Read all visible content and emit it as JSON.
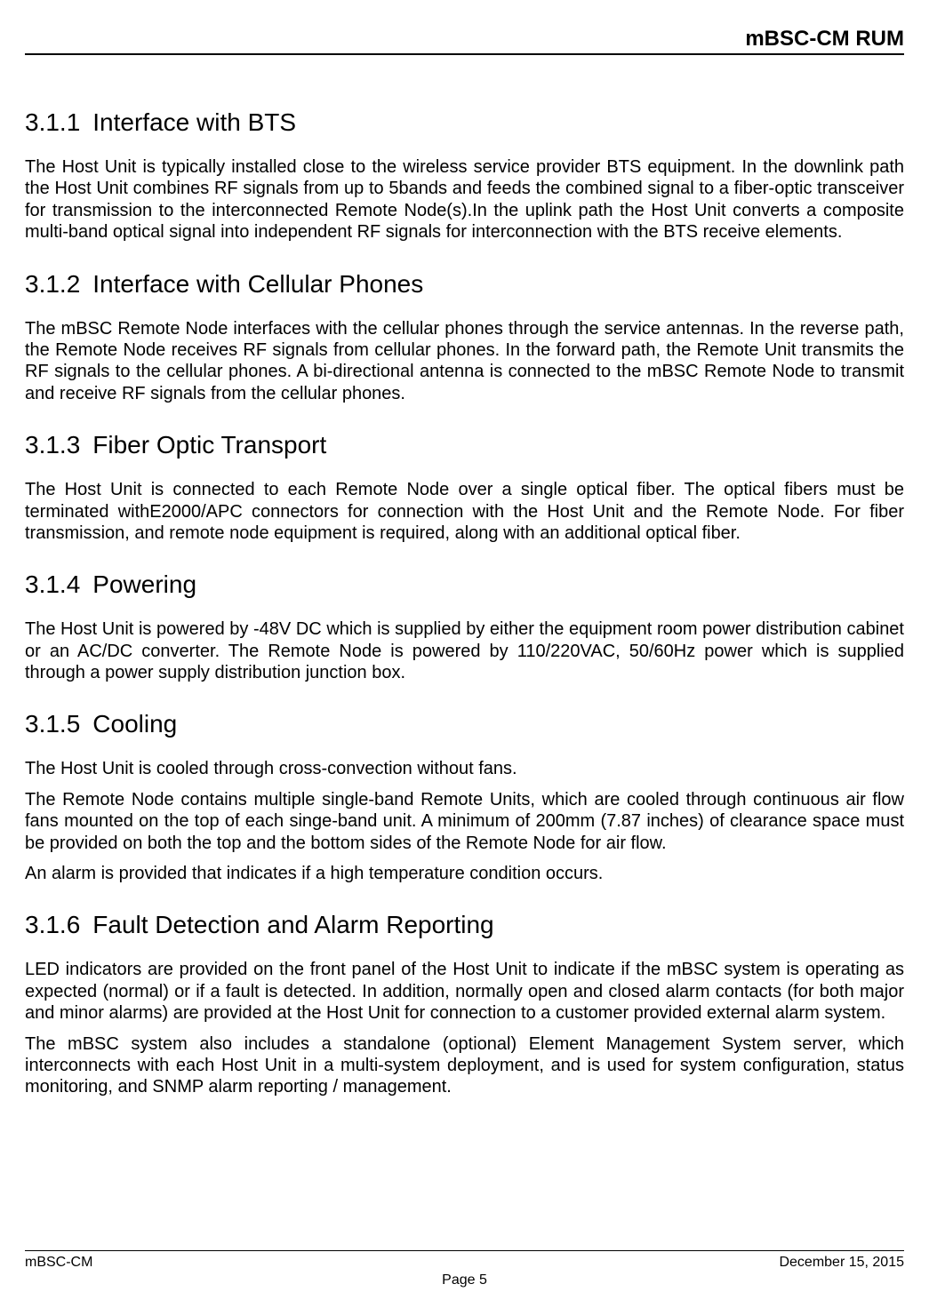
{
  "header": {
    "title": "mBSC-CM  RUM"
  },
  "sections": [
    {
      "num": "3.1.1",
      "title": "Interface with BTS",
      "paras": [
        "The Host Unit is typically installed close to the wireless service provider BTS equipment. In the downlink path the Host Unit combines RF signals from up to 5bands and feeds the combined signal to a fiber-optic transceiver for transmission to the interconnected Remote Node(s).In the uplink path the Host Unit converts a composite multi-band optical signal into independent RF signals for interconnection with the BTS receive elements."
      ]
    },
    {
      "num": "3.1.2",
      "title": "Interface with Cellular Phones",
      "paras": [
        "The mBSC Remote Node interfaces with the cellular phones through the service antennas. In the reverse path, the Remote Node receives RF signals from cellular phones. In the forward path, the Remote Unit transmits the RF signals to the cellular phones. A bi-directional antenna is connected to the mBSC Remote Node to transmit and receive RF signals from the cellular phones."
      ]
    },
    {
      "num": "3.1.3",
      "title": "Fiber Optic Transport",
      "paras": [
        "The Host Unit is connected to each Remote Node over a single optical fiber. The optical fibers must be terminated withE2000/APC connectors for connection with the Host Unit and the Remote Node. For fiber transmission, and remote node equipment is required, along with an additional optical fiber."
      ]
    },
    {
      "num": "3.1.4",
      "title": "Powering",
      "paras": [
        "The Host Unit is powered by -48V DC which is supplied by either the equipment room power distribution cabinet or an AC/DC converter. The Remote Node is powered by 110/220VAC, 50/60Hz power which is supplied through a power supply distribution junction box."
      ]
    },
    {
      "num": "3.1.5",
      "title": "Cooling",
      "paras": [
        "The Host Unit is cooled through cross-convection without fans.",
        "The Remote Node contains multiple single-band Remote Units, which are cooled through continuous air flow fans mounted on the top of each singe-band unit. A minimum of 200mm (7.87 inches) of clearance space must be provided on both the top and the bottom sides of the Remote Node for air flow.",
        "An alarm is provided that indicates if a high temperature condition occurs."
      ]
    },
    {
      "num": "3.1.6",
      "title": "Fault Detection and Alarm Reporting",
      "paras": [
        "LED indicators are provided on the front panel of the Host Unit to indicate if the mBSC system is operating as expected (normal) or if a fault is detected. In addition, normally open and closed alarm contacts (for both major and minor alarms) are provided at the Host Unit for connection to a customer provided external alarm system.",
        "The mBSC system also includes a standalone (optional) Element Management System server, which interconnects with each Host Unit in a multi-system deployment, and is used for system configuration, status monitoring, and SNMP alarm reporting / management."
      ]
    }
  ],
  "footer": {
    "left": "mBSC-CM",
    "right": "December 15, 2015",
    "page": "Page 5"
  }
}
